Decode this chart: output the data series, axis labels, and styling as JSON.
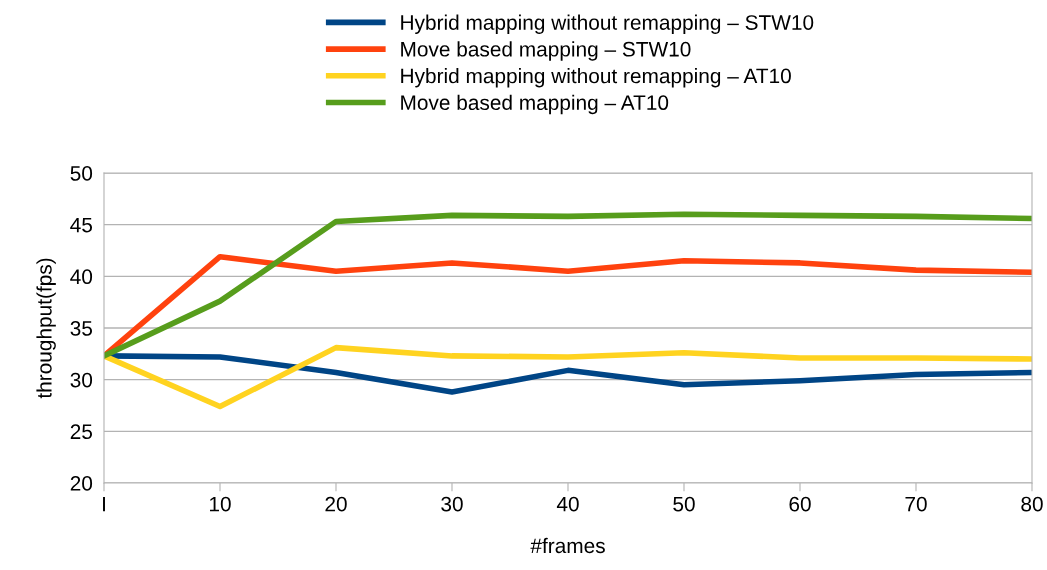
{
  "chart_data": {
    "type": "line",
    "xlabel": "#frames",
    "ylabel": "throughput(fps)",
    "categories": [
      "I",
      "10",
      "20",
      "30",
      "40",
      "50",
      "60",
      "70",
      "80"
    ],
    "ylim": [
      20,
      50
    ],
    "yticks": [
      20,
      25,
      30,
      35,
      40,
      45,
      50
    ],
    "grid": "y",
    "legend": "top",
    "marker": "none",
    "line_style": "solid",
    "series": [
      {
        "name": "Hybrid mapping without remapping – STW10",
        "color": "#004586",
        "values": [
          32.3,
          32.2,
          30.7,
          28.8,
          30.9,
          29.5,
          29.9,
          30.5,
          30.7
        ]
      },
      {
        "name": "Move based mapping – STW10",
        "color": "#ff420e",
        "values": [
          32.3,
          41.9,
          40.5,
          41.3,
          40.5,
          41.5,
          41.3,
          40.6,
          40.4
        ]
      },
      {
        "name": "Hybrid mapping without remapping – AT10",
        "color": "#ffd320",
        "values": [
          32.3,
          27.4,
          33.1,
          32.3,
          32.2,
          32.6,
          32.1,
          32.1,
          32.0
        ]
      },
      {
        "name": "Move based mapping – AT10",
        "color": "#579d1c",
        "values": [
          32.3,
          37.6,
          45.3,
          45.9,
          45.8,
          46.0,
          45.9,
          45.8,
          45.6
        ]
      }
    ]
  }
}
